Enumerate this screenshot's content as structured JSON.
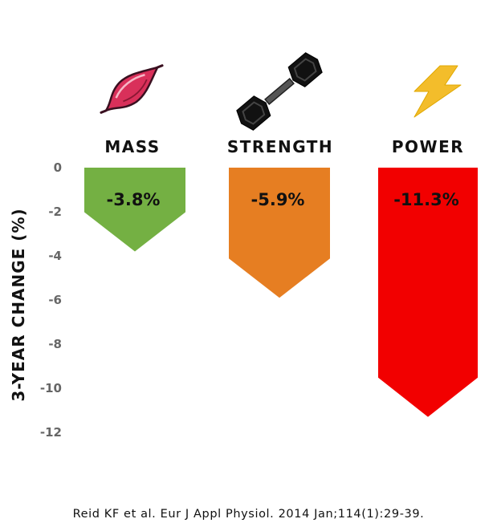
{
  "chart_data": {
    "type": "bar",
    "categories": [
      "MASS",
      "STRENGTH",
      "POWER"
    ],
    "values": [
      -3.8,
      -5.9,
      -11.3
    ],
    "value_labels": [
      "-3.8%",
      "-5.9%",
      "-11.3%"
    ],
    "colors": [
      "#74b043",
      "#e67e22",
      "#f20000"
    ],
    "icons": [
      "muscle-icon",
      "dumbbell-icon",
      "lightning-bolt-icon"
    ],
    "ylabel": "3-YEAR CHANGE (%)",
    "yticks": [
      0,
      -2,
      -4,
      -6,
      -8,
      -10,
      -12
    ],
    "ylim": [
      -12,
      0
    ],
    "grid": false
  },
  "citation": "Reid KF et al. Eur J Appl Physiol. 2014 Jan;114(1):29-39."
}
